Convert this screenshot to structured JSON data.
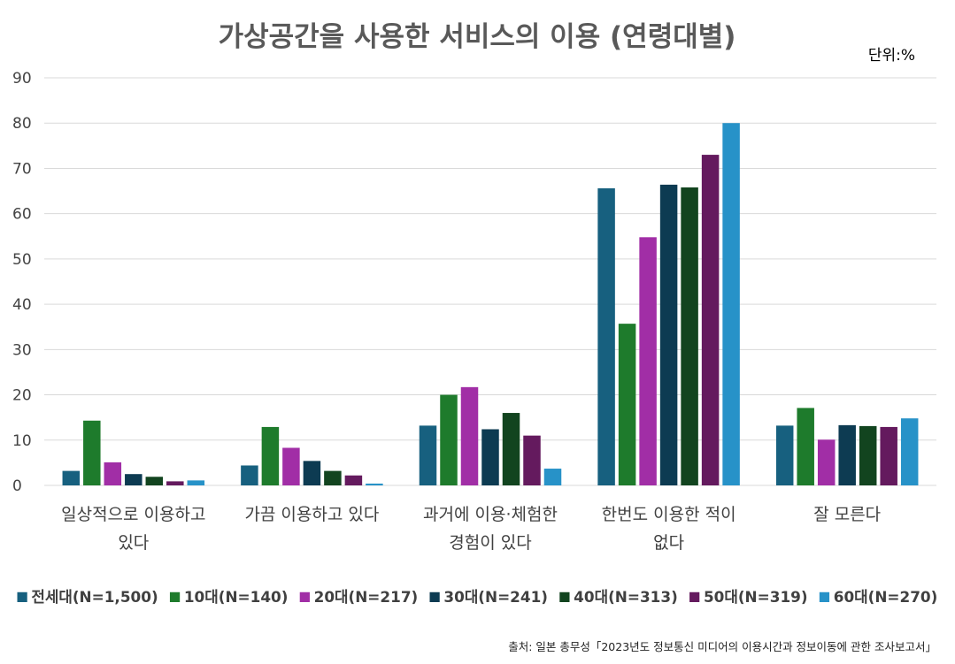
{
  "chart_data": {
    "type": "bar",
    "title": "가상공간을 사용한 서비스의 이용 (연령대별)",
    "unit_label": "단위:%",
    "source": "출처: 일본 총무성「2023년도 정보통신 미디어의 이용시간과 정보이동에 관한 조사보고서」",
    "ylim": [
      0,
      90
    ],
    "yticks": [
      0,
      10,
      20,
      30,
      40,
      50,
      60,
      70,
      80,
      90
    ],
    "grid": true,
    "legend_position": "bottom",
    "categories": [
      [
        "일상적으로 이용하고",
        "있다"
      ],
      [
        "가끔 이용하고 있다"
      ],
      [
        "과거에 이용·체험한",
        "경험이 있다"
      ],
      [
        "한번도 이용한 적이",
        "없다"
      ],
      [
        "잘 모른다"
      ]
    ],
    "series": [
      {
        "name": "전세대(N=1,500)",
        "color": "#17607f",
        "values": [
          3.2,
          4.4,
          13.2,
          65.6,
          13.2
        ]
      },
      {
        "name": "10대(N=140)",
        "color": "#1e7b2c",
        "values": [
          14.3,
          12.9,
          20.0,
          35.7,
          17.1
        ]
      },
      {
        "name": "20대(N=217)",
        "color": "#a12ea6",
        "values": [
          5.1,
          8.3,
          21.7,
          54.8,
          10.1
        ]
      },
      {
        "name": "30대(N=241)",
        "color": "#0d3b52",
        "values": [
          2.5,
          5.4,
          12.4,
          66.4,
          13.3
        ]
      },
      {
        "name": "40대(N=313)",
        "color": "#12441f",
        "values": [
          1.9,
          3.2,
          16.0,
          65.8,
          13.1
        ]
      },
      {
        "name": "50대(N=319)",
        "color": "#641a5e",
        "values": [
          0.9,
          2.2,
          11.0,
          73.0,
          12.9
        ]
      },
      {
        "name": "60대(N=270)",
        "color": "#2792c8",
        "values": [
          1.1,
          0.4,
          3.7,
          80.0,
          14.8
        ]
      }
    ]
  }
}
